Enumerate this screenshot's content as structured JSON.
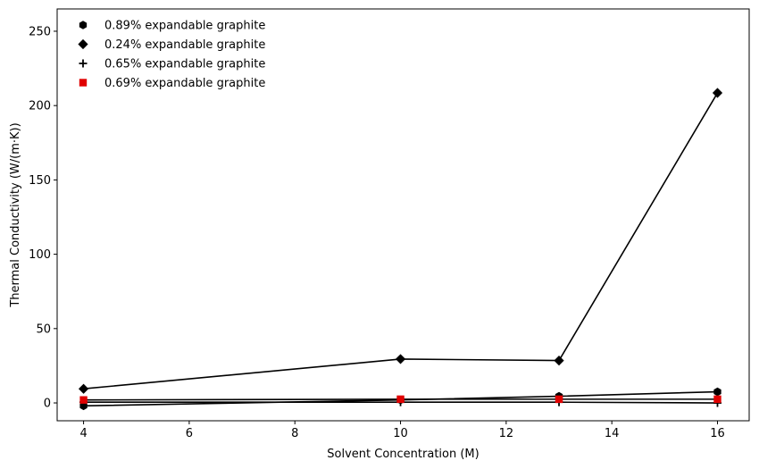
{
  "chart_data": {
    "type": "line",
    "title": "",
    "xlabel": "Solvent Concentration (M)",
    "ylabel": "Thermal Conductivity (W/(m·K))",
    "xlim": [
      3.5,
      16.6
    ],
    "ylim": [
      -12,
      265
    ],
    "xticks": [
      4,
      6,
      8,
      10,
      12,
      14,
      16
    ],
    "yticks": [
      0,
      50,
      100,
      150,
      200,
      250
    ],
    "grid": false,
    "legend_position": "top-left",
    "series": [
      {
        "name": "0.89% expandable graphite",
        "marker": "hexagon",
        "color": "#000000",
        "x": [
          4,
          10,
          13,
          16
        ],
        "y": [
          -2,
          2,
          4.5,
          7.5
        ]
      },
      {
        "name": "0.24% expandable graphite",
        "marker": "diamond",
        "color": "#000000",
        "x": [
          4,
          10,
          13,
          16
        ],
        "y": [
          9.5,
          29.5,
          28.5,
          208.5
        ]
      },
      {
        "name": "0.65% expandable graphite",
        "marker": "plus",
        "color": "#000000",
        "x": [
          4,
          10,
          13,
          16
        ],
        "y": [
          0.5,
          0.5,
          0.5,
          0
        ]
      },
      {
        "name": "0.69% expandable graphite",
        "marker": "square",
        "color": "#e00000",
        "x": [
          4,
          10,
          13,
          16
        ],
        "y": [
          2,
          2.5,
          2.5,
          2.5
        ]
      }
    ]
  }
}
